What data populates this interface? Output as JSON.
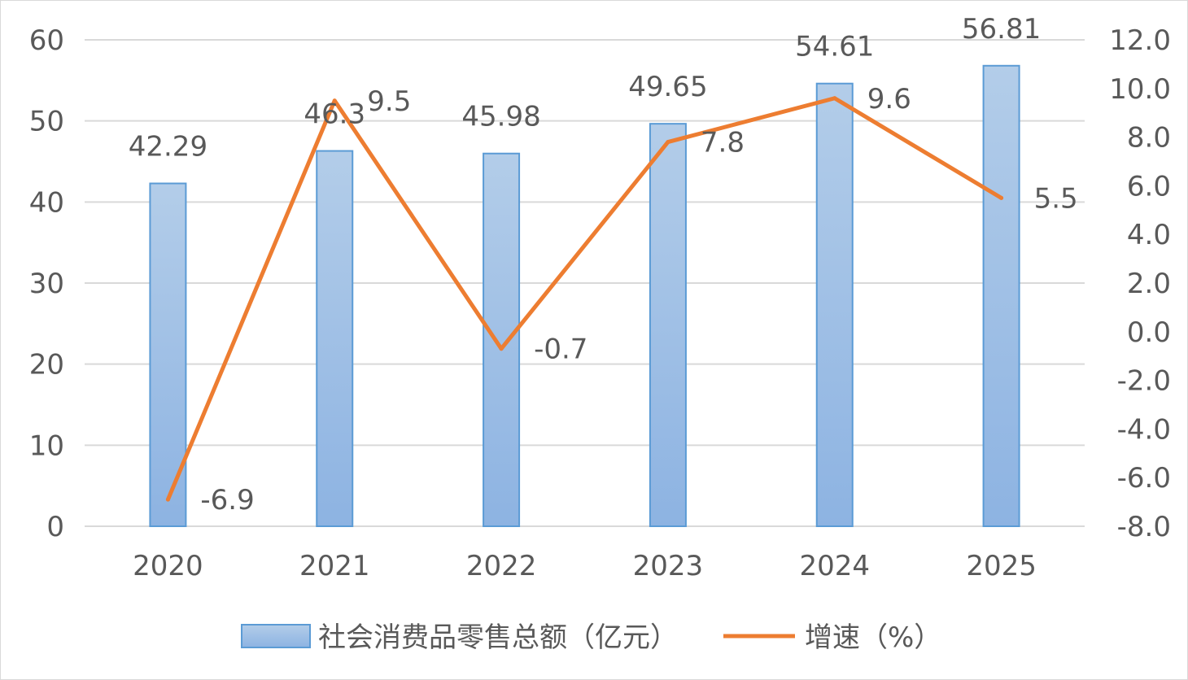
{
  "chart_data": {
    "type": "bar",
    "categories": [
      "2020",
      "2021",
      "2022",
      "2023",
      "2024",
      "2025"
    ],
    "series": [
      {
        "name": "社会消费品零售总额（亿元）",
        "type": "bar",
        "axis": "left",
        "values": [
          42.29,
          46.3,
          45.98,
          49.65,
          54.61,
          56.81
        ],
        "labels": [
          "42.29",
          "46.3",
          "45.98",
          "49.65",
          "54.61",
          "56.81"
        ],
        "color": "#9dc3e6"
      },
      {
        "name": "增速（%）",
        "type": "line",
        "axis": "right",
        "values": [
          -6.9,
          9.5,
          -0.7,
          7.8,
          9.6,
          5.5
        ],
        "labels": [
          "-6.9",
          "9.5",
          "-0.7",
          "7.8",
          "9.6",
          "5.5"
        ],
        "color": "#ed7d31"
      }
    ],
    "y_left": {
      "ylim": [
        0,
        60
      ],
      "ticks": [
        "0",
        "10",
        "20",
        "30",
        "40",
        "50",
        "60"
      ]
    },
    "y_right": {
      "ylim": [
        -8,
        12
      ],
      "ticks": [
        "-8.0",
        "-6.0",
        "-4.0",
        "-2.0",
        "0.0",
        "2.0",
        "4.0",
        "6.0",
        "8.0",
        "10.0",
        "12.0"
      ]
    },
    "grid": true,
    "legend_position": "bottom"
  }
}
